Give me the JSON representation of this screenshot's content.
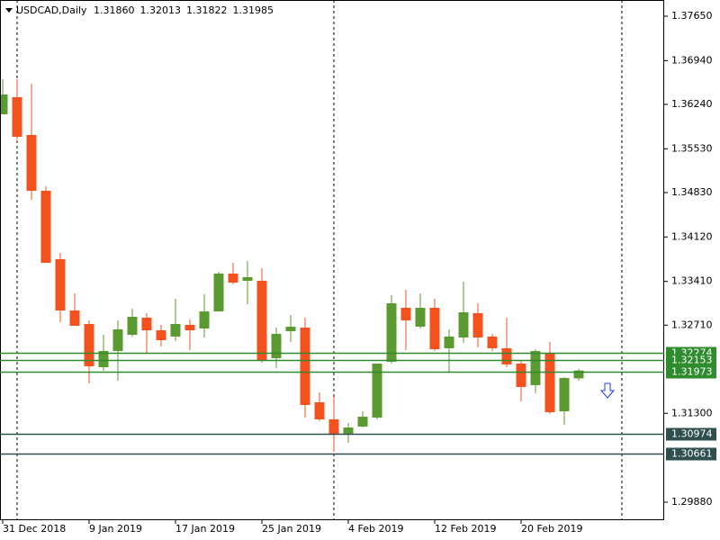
{
  "chart_data": {
    "type": "candlestick",
    "title": "USDCAD,Daily",
    "header_values": [
      "1.31860",
      "1.32013",
      "1.31822",
      "1.31985"
    ],
    "categories": [
      "31 Dec 2018",
      null,
      null,
      null,
      null,
      null,
      "9 Jan 2019",
      null,
      null,
      null,
      null,
      null,
      "17 Jan 2019",
      null,
      null,
      null,
      null,
      null,
      "25 Jan 2019",
      null,
      null,
      null,
      null,
      null,
      "4 Feb 2019",
      null,
      null,
      null,
      null,
      null,
      "12 Feb 2019",
      null,
      null,
      null,
      null,
      null,
      "20 Feb 2019",
      null,
      null,
      null,
      null
    ],
    "open": [
      1.36082,
      1.36355,
      1.35751,
      1.34859,
      1.33765,
      1.32945,
      1.32729,
      1.32038,
      1.32297,
      1.32556,
      1.3283,
      1.32628,
      1.32528,
      1.32715,
      1.32657,
      1.3293,
      1.33535,
      1.3342,
      1.3342,
      1.32182,
      1.32614,
      1.32671,
      1.31477,
      1.31204,
      1.30974,
      1.31089,
      1.31233,
      1.32125,
      1.32988,
      1.32686,
      1.32988,
      1.32341,
      1.32513,
      1.32902,
      1.32528,
      1.32341,
      1.32096,
      1.31751,
      1.32269,
      1.31333,
      1.3186
    ],
    "high": [
      1.36643,
      1.36643,
      1.36571,
      1.34931,
      1.33866,
      1.33218,
      1.32787,
      1.32556,
      1.32787,
      1.32974,
      1.32902,
      1.32715,
      1.33132,
      1.32801,
      1.33204,
      1.33564,
      1.33707,
      1.33736,
      1.33621,
      1.32671,
      1.32873,
      1.3283,
      1.31635,
      1.31564,
      1.31146,
      1.31333,
      1.32096,
      1.33189,
      1.33276,
      1.33218,
      1.33132,
      1.32643,
      1.33405,
      1.3306,
      1.32571,
      1.3283,
      1.32139,
      1.32326,
      1.32441,
      1.3188,
      1.32013
    ],
    "low": [
      1.36082,
      1.35679,
      1.34715,
      1.33707,
      1.32758,
      1.327,
      1.31779,
      1.31981,
      1.31823,
      1.32528,
      1.32269,
      1.32369,
      1.32456,
      1.32312,
      1.32513,
      1.3293,
      1.33362,
      1.33046,
      1.3211,
      1.32024,
      1.32441,
      1.31233,
      1.31175,
      1.30686,
      1.3083,
      1.31074,
      1.31204,
      1.32096,
      1.32312,
      1.32657,
      1.32297,
      1.31966,
      1.32427,
      1.32355,
      1.32297,
      1.32038,
      1.31492,
      1.31621,
      1.3129,
      1.31117,
      1.31822
    ],
    "close": [
      1.36398,
      1.35722,
      1.34859,
      1.33707,
      1.32945,
      1.327,
      1.32053,
      1.32297,
      1.32643,
      1.32844,
      1.32628,
      1.3247,
      1.32729,
      1.32628,
      1.3293,
      1.33535,
      1.33391,
      1.33477,
      1.32139,
      1.32571,
      1.32686,
      1.31434,
      1.31204,
      1.30974,
      1.31074,
      1.31247,
      1.32096,
      1.3306,
      1.32787,
      1.32988,
      1.32326,
      1.32528,
      1.32916,
      1.32513,
      1.32341,
      1.32082,
      1.31722,
      1.32297,
      1.31319,
      1.31866,
      1.31985
    ],
    "up_color": "#5b9a30",
    "down_color": "#f4511e",
    "ylim": [
      1.29592,
      1.37909
    ],
    "yticks": [
      {
        "value": 1.3765,
        "label": "1.37650"
      },
      {
        "value": 1.3694,
        "label": "1.36940"
      },
      {
        "value": 1.3624,
        "label": "1.36240"
      },
      {
        "value": 1.3553,
        "label": "1.35530"
      },
      {
        "value": 1.3483,
        "label": "1.34830"
      },
      {
        "value": 1.3412,
        "label": "1.34120"
      },
      {
        "value": 1.3341,
        "label": "1.33410"
      },
      {
        "value": 1.3271,
        "label": "1.32710"
      },
      {
        "value": 1.313,
        "label": "1.31300"
      },
      {
        "value": 1.2988,
        "label": "1.29880"
      }
    ],
    "levels": [
      {
        "value": 1.32274,
        "color": "#2e8b2e"
      },
      {
        "value": 1.32153,
        "color": "#2e8b2e"
      },
      {
        "value": 1.31973,
        "color": "#2e8b2e"
      },
      {
        "value": 1.30974,
        "color": "#2f4f4f"
      },
      {
        "value": 1.30661,
        "color": "#2f4f4f"
      }
    ]
  }
}
